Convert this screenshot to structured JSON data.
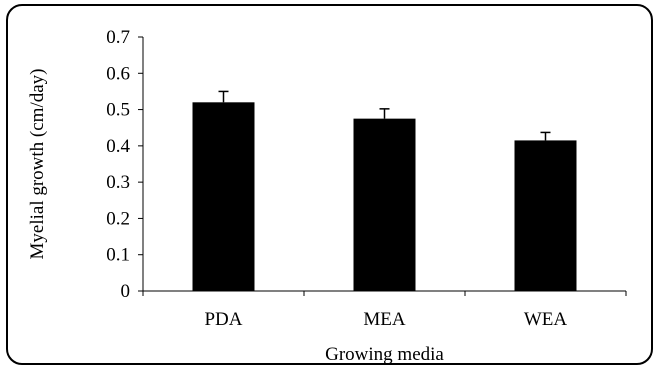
{
  "chart_data": {
    "type": "bar",
    "title": "",
    "xlabel": "Growing media",
    "ylabel": "Myelial growth  (cm/day)",
    "categories": [
      "PDA",
      "MEA",
      "WEA"
    ],
    "values": [
      0.52,
      0.475,
      0.415
    ],
    "errors": [
      0.03,
      0.027,
      0.022
    ],
    "ylim": [
      0,
      0.7
    ],
    "yticks": [
      0,
      0.1,
      0.2,
      0.3,
      0.4,
      0.5,
      0.6,
      0.7
    ],
    "ytick_labels": [
      "0",
      "0.1",
      "0.2",
      "0.3",
      "0.4",
      "0.5",
      "0.6",
      "0.7"
    ],
    "grid": false,
    "legend": false,
    "bar_color": "#000000"
  }
}
